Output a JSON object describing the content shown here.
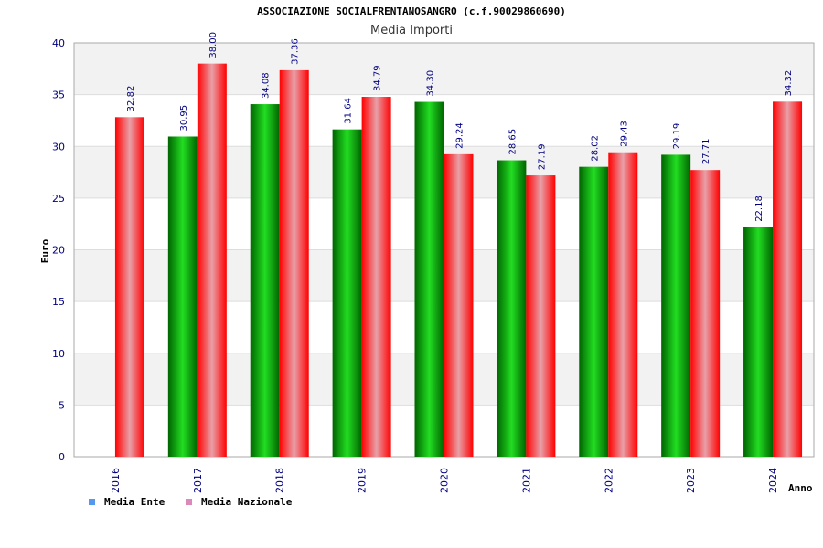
{
  "chart_data": {
    "type": "bar",
    "title": "ASSOCIAZIONE SOCIALFRENTANOSANGRO (c.f.90029860690)",
    "subtitle": "Media Importi",
    "xlabel": "Anno",
    "ylabel": "Euro",
    "ylim": [
      0,
      40
    ],
    "yticks": [
      0,
      5,
      10,
      15,
      20,
      25,
      30,
      35,
      40
    ],
    "categories": [
      "2016",
      "2017",
      "2018",
      "2019",
      "2020",
      "2021",
      "2022",
      "2023",
      "2024"
    ],
    "series": [
      {
        "name": "Media Ente",
        "values": [
          null,
          30.95,
          34.08,
          31.64,
          34.3,
          28.65,
          28.02,
          29.19,
          22.18
        ],
        "labels": [
          "",
          "30.95",
          "34.08",
          "31.64",
          "34.30",
          "28.65",
          "28.02",
          "29.19",
          "22.18"
        ]
      },
      {
        "name": "Media Nazionale",
        "values": [
          32.82,
          38.0,
          37.36,
          34.79,
          29.24,
          27.19,
          29.43,
          27.71,
          34.32
        ],
        "labels": [
          "32.82",
          "38.00",
          "37.36",
          "34.79",
          "29.24",
          "27.19",
          "29.43",
          "27.71",
          "34.32"
        ]
      }
    ],
    "legend_position": "bottom-left",
    "grid": true
  },
  "colors": {
    "ente_dark": "#006400",
    "ente_light": "#22dd22",
    "naz_dark": "#ff0000",
    "naz_light": "#e8a0a8",
    "legend_ente": "#5599ee",
    "legend_naz": "#dd88bb",
    "band": "#f2f2f2",
    "grid": "#dddddd",
    "axis": "#aaaaaa"
  }
}
